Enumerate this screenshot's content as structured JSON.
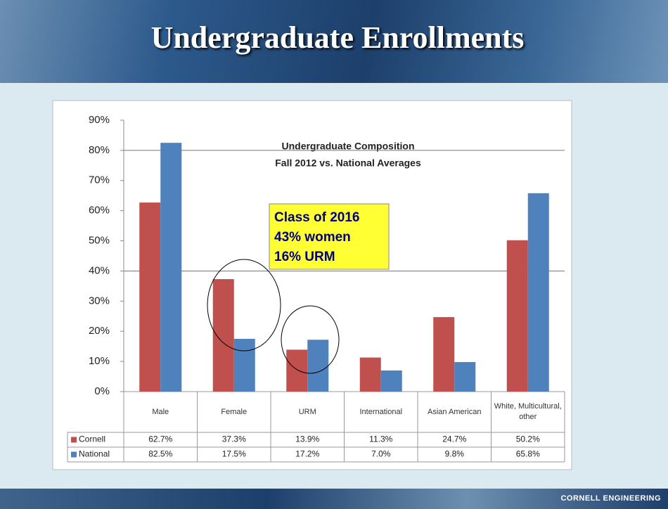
{
  "slide_title": "Undergraduate Enrollments",
  "footer": "CORNELL ENGINEERING",
  "annotation": [
    "Class of 2016",
    "43% women",
    "16% URM"
  ],
  "chart_data": {
    "type": "bar",
    "title": [
      "Undergraduate Composition",
      "Fall 2012 vs. National Averages"
    ],
    "categories": [
      "Male",
      "Female",
      "URM",
      "International",
      "Asian American",
      "White, Multicultural, other"
    ],
    "series": [
      {
        "name": "Cornell",
        "color": "#c0504d",
        "values": [
          62.7,
          37.3,
          13.9,
          11.3,
          24.7,
          50.2
        ],
        "value_labels": [
          "62.7%",
          "37.3%",
          "13.9%",
          "11.3%",
          "24.7%",
          "50.2%"
        ]
      },
      {
        "name": "National",
        "color": "#4f81bd",
        "values": [
          82.5,
          17.5,
          17.2,
          7.0,
          9.8,
          65.8
        ],
        "value_labels": [
          "82.5%",
          "17.5%",
          "17.2%",
          "7.0%",
          "9.8%",
          "65.8%"
        ]
      }
    ],
    "ylim": [
      0,
      90
    ],
    "yticks": [
      {
        "value": 0,
        "label": "0%"
      },
      {
        "value": 10,
        "label": "10%"
      },
      {
        "value": 20,
        "label": "20%"
      },
      {
        "value": 30,
        "label": "30%"
      },
      {
        "value": 40,
        "label": "40%"
      },
      {
        "value": 50,
        "label": "50%"
      },
      {
        "value": 60,
        "label": "60%"
      },
      {
        "value": 70,
        "label": "70%"
      },
      {
        "value": 80,
        "label": "80%"
      },
      {
        "value": 90,
        "label": "90%"
      }
    ],
    "gridlines": [
      40,
      80
    ]
  }
}
